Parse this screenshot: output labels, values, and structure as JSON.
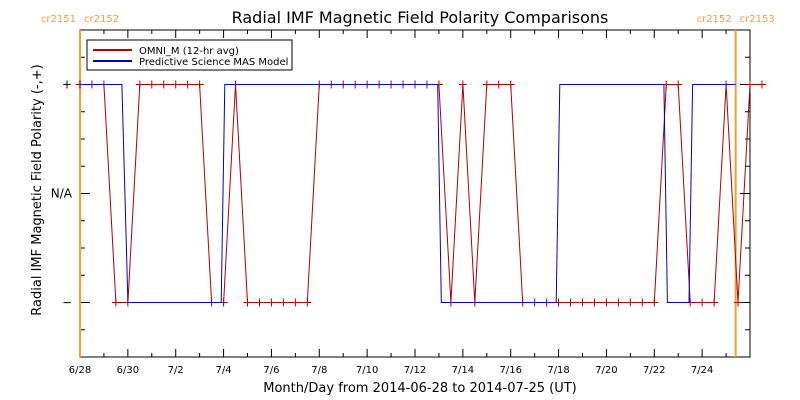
{
  "chart_data": {
    "type": "line",
    "title": "Radial IMF Magnetic Field Polarity Comparisons",
    "xlabel": "Month/Day from 2014-06-28 to 2014-07-25 (UT)",
    "ylabel": "Radial IMF Magnetic Field Polarity (-,+)",
    "x_unit": "days",
    "xlim": [
      0,
      28
    ],
    "ylim": [
      -1.5,
      1.5
    ],
    "x_tick_labels": [
      "6/28",
      "6/30",
      "7/2",
      "7/4",
      "7/6",
      "7/8",
      "7/10",
      "7/12",
      "7/14",
      "7/16",
      "7/18",
      "7/20",
      "7/22",
      "7/24"
    ],
    "x_tick_values": [
      0,
      2,
      4,
      6,
      8,
      10,
      12,
      14,
      16,
      18,
      20,
      22,
      24,
      26
    ],
    "y_tick_labels": [
      "+",
      "N/A",
      "−"
    ],
    "y_tick_values": [
      1,
      0,
      -1
    ],
    "carrington_markers": [
      {
        "x": 0.0,
        "label_left": "cr2151",
        "label_right": "cr2152"
      },
      {
        "x": 27.4,
        "label_left": "cr2152",
        "label_right": "cr2153"
      }
    ],
    "series": [
      {
        "name": "OMNI_M (12-hr avg)",
        "color": "#b00000",
        "marker": "+",
        "points": [
          [
            0.0,
            1
          ],
          [
            0.5,
            1
          ],
          [
            1.0,
            1
          ],
          [
            1.5,
            -1
          ],
          [
            2.0,
            -1
          ],
          [
            2.5,
            1
          ],
          [
            3.0,
            1
          ],
          [
            3.5,
            1
          ],
          [
            4.0,
            1
          ],
          [
            4.5,
            1
          ],
          [
            5.0,
            1
          ],
          [
            5.5,
            -1
          ],
          [
            6.0,
            -1
          ],
          [
            6.5,
            1
          ],
          [
            7.0,
            -1
          ],
          [
            7.5,
            -1
          ],
          [
            8.0,
            -1
          ],
          [
            8.5,
            -1
          ],
          [
            9.0,
            -1
          ],
          [
            9.5,
            -1
          ],
          [
            10.0,
            1
          ],
          [
            10.5,
            1
          ],
          [
            11.0,
            1
          ],
          [
            11.5,
            1
          ],
          [
            12.0,
            1
          ],
          [
            12.5,
            1
          ],
          [
            13.0,
            1
          ],
          [
            13.5,
            1
          ],
          [
            14.0,
            1
          ],
          [
            14.5,
            1
          ],
          [
            15.0,
            1
          ],
          [
            15.5,
            -1
          ],
          [
            16.0,
            1
          ],
          [
            16.5,
            -1
          ],
          [
            17.0,
            1
          ],
          [
            17.5,
            1
          ],
          [
            18.0,
            1
          ],
          [
            18.5,
            -1
          ],
          [
            19.0,
            -1
          ],
          [
            19.5,
            -1
          ],
          [
            20.0,
            -1
          ],
          [
            20.5,
            -1
          ],
          [
            21.0,
            -1
          ],
          [
            21.5,
            -1
          ],
          [
            22.0,
            -1
          ],
          [
            22.5,
            -1
          ],
          [
            23.0,
            -1
          ],
          [
            23.5,
            -1
          ],
          [
            24.0,
            -1
          ],
          [
            24.5,
            1
          ],
          [
            25.0,
            1
          ],
          [
            25.5,
            -1
          ],
          [
            26.0,
            -1
          ],
          [
            26.5,
            -1
          ],
          [
            27.0,
            1
          ],
          [
            27.5,
            -1
          ],
          [
            28.0,
            1
          ],
          [
            28.5,
            1
          ]
        ]
      },
      {
        "name": "Predictive Science MAS Model",
        "color": "#0000cc",
        "marker": "",
        "points": [
          [
            0.0,
            1
          ],
          [
            1.75,
            1
          ],
          [
            2.0,
            -1
          ],
          [
            5.9,
            -1
          ],
          [
            6.05,
            1
          ],
          [
            14.95,
            1
          ],
          [
            15.1,
            -1
          ],
          [
            19.9,
            -1
          ],
          [
            20.05,
            1
          ],
          [
            24.4,
            1
          ],
          [
            24.55,
            -1
          ],
          [
            25.45,
            -1
          ],
          [
            25.6,
            1
          ],
          [
            27.4,
            1
          ]
        ]
      }
    ],
    "legend_position": "top-left"
  }
}
